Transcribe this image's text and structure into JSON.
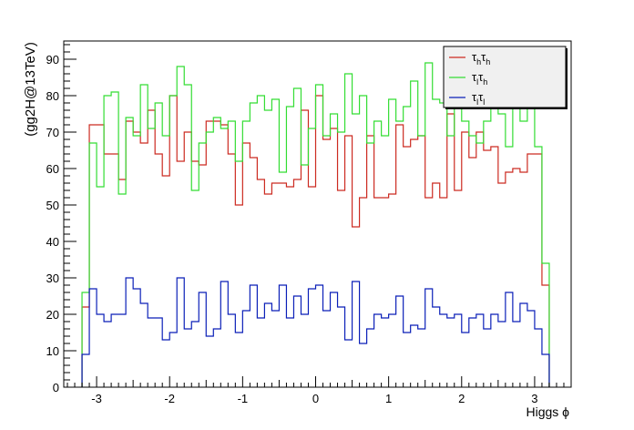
{
  "chart_data": {
    "type": "step",
    "xlabel": "Higgs ϕ",
    "ylabel": "(gg2H@13TeV)",
    "xlim": [
      -3.45,
      3.5
    ],
    "ylim": [
      0,
      95
    ],
    "x_ticks": [
      -3,
      -2,
      -1,
      0,
      1,
      2,
      3
    ],
    "x_tick_labels": [
      "-3",
      "-2",
      "-1",
      "0",
      "1",
      "2",
      "3"
    ],
    "y_ticks": [
      0,
      10,
      20,
      30,
      40,
      50,
      60,
      70,
      80,
      90
    ],
    "y_tick_labels": [
      "0",
      "10",
      "20",
      "30",
      "40",
      "50",
      "60",
      "70",
      "80",
      "90"
    ],
    "bin_edges": [
      -3.2,
      -3.1,
      -3.0,
      -2.9,
      -2.8,
      -2.7,
      -2.6,
      -2.5,
      -2.4,
      -2.3,
      -2.2,
      -2.1,
      -2.0,
      -1.9,
      -1.8,
      -1.7,
      -1.6,
      -1.5,
      -1.4,
      -1.3,
      -1.2,
      -1.1,
      -1.0,
      -0.9,
      -0.8,
      -0.7,
      -0.6,
      -0.5,
      -0.4,
      -0.3,
      -0.2,
      -0.1,
      0.0,
      0.1,
      0.2,
      0.3,
      0.4,
      0.5,
      0.6,
      0.7,
      0.8,
      0.9,
      1.0,
      1.1,
      1.2,
      1.3,
      1.4,
      1.5,
      1.6,
      1.7,
      1.8,
      1.9,
      2.0,
      2.1,
      2.2,
      2.3,
      2.4,
      2.5,
      2.6,
      2.7,
      2.8,
      2.9,
      3.0,
      3.1,
      3.2
    ],
    "series": [
      {
        "name_main": "τ",
        "name_sub1": "h",
        "name_mid": "τ",
        "name_sub2": "h",
        "color": "#cc2a20",
        "values": [
          22,
          72,
          72,
          64,
          64,
          57,
          73,
          70,
          67,
          76,
          64,
          58,
          80,
          62,
          70,
          62,
          61,
          73,
          73,
          72,
          64,
          50,
          67,
          63,
          57,
          53,
          56,
          56,
          55,
          57,
          76,
          55,
          80,
          68,
          71,
          54,
          69,
          44,
          52,
          69,
          52,
          52,
          53,
          72,
          66,
          68,
          69,
          52,
          56,
          52,
          75,
          54,
          70,
          63,
          70,
          65,
          66,
          56,
          59,
          60,
          59,
          64,
          64,
          28
        ]
      },
      {
        "name_main": "τ",
        "name_sub1": "l",
        "name_mid": "τ",
        "name_sub2": "h",
        "color": "#33dd33",
        "values": [
          26,
          67,
          55,
          80,
          81,
          53,
          74,
          69,
          83,
          71,
          78,
          69,
          80,
          88,
          83,
          54,
          67,
          70,
          74,
          71,
          73,
          62,
          73,
          78,
          80,
          76,
          79,
          59,
          77,
          82,
          61,
          71,
          83,
          69,
          75,
          70,
          86,
          75,
          80,
          67,
          73,
          69,
          79,
          73,
          77,
          84,
          69,
          89,
          79,
          78,
          69,
          85,
          73,
          69,
          67,
          73,
          77,
          75,
          66,
          77,
          73,
          80,
          66,
          34
        ]
      },
      {
        "name_main": "τ",
        "name_sub1": "l",
        "name_mid": "τ",
        "name_sub2": "l",
        "color": "#0a1fb8",
        "values": [
          9,
          27,
          20,
          18,
          20,
          20,
          30,
          27,
          23,
          19,
          19,
          13,
          15,
          30,
          16,
          18,
          26,
          14,
          16,
          29,
          20,
          15,
          21,
          28,
          19,
          23,
          21,
          28,
          19,
          25,
          20,
          27,
          28,
          21,
          26,
          22,
          13,
          29,
          12,
          16,
          20,
          19,
          20,
          25,
          15,
          17,
          16,
          27,
          22,
          20,
          19,
          20,
          15,
          19,
          20,
          16,
          20,
          18,
          26,
          18,
          23,
          21,
          16,
          9
        ]
      }
    ]
  }
}
